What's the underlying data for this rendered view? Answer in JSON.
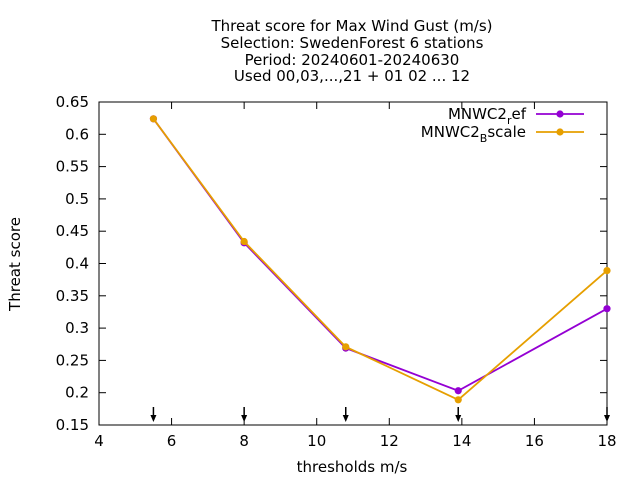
{
  "chart_data": {
    "type": "line",
    "title_lines": [
      "Threat score  for Max Wind Gust (m/s)",
      "Selection: SwedenForest      6 stations",
      "Period: 20240601-20240630",
      "Used 00,03,...,21 + 01 02 ... 12"
    ],
    "xlabel": "thresholds m/s",
    "ylabel": "Threat score",
    "xlim": [
      4,
      18
    ],
    "ylim": [
      0.15,
      0.65
    ],
    "x_ticks": [
      4,
      6,
      8,
      10,
      12,
      14,
      16,
      18
    ],
    "y_ticks": [
      0.15,
      0.2,
      0.25,
      0.3,
      0.35,
      0.4,
      0.45,
      0.5,
      0.55,
      0.6,
      0.65
    ],
    "x_tick_labels": [
      "4",
      "6",
      "8",
      "10",
      "12",
      "14",
      "16",
      "18"
    ],
    "y_tick_labels": [
      "0.15",
      "0.2",
      "0.25",
      "0.3",
      "0.35",
      "0.4",
      "0.45",
      "0.5",
      "0.55",
      "0.6",
      "0.65"
    ],
    "threshold_markers": [
      5.5,
      8,
      10.8,
      13.9,
      18
    ],
    "grid": false,
    "legend_position": "top-right",
    "series": [
      {
        "name_base": "MNWC2",
        "name_sub": "r",
        "name_tail": "ef",
        "color": "#9400d3",
        "x": [
          5.5,
          8,
          10.8,
          13.9,
          18
        ],
        "y": [
          0.624,
          0.432,
          0.269,
          0.203,
          0.33
        ]
      },
      {
        "name_base": "MNWC2",
        "name_sub": "B",
        "name_tail": "scale",
        "color": "#e69f00",
        "x": [
          5.5,
          8,
          10.8,
          13.9,
          18
        ],
        "y": [
          0.624,
          0.434,
          0.271,
          0.189,
          0.389
        ]
      }
    ]
  }
}
